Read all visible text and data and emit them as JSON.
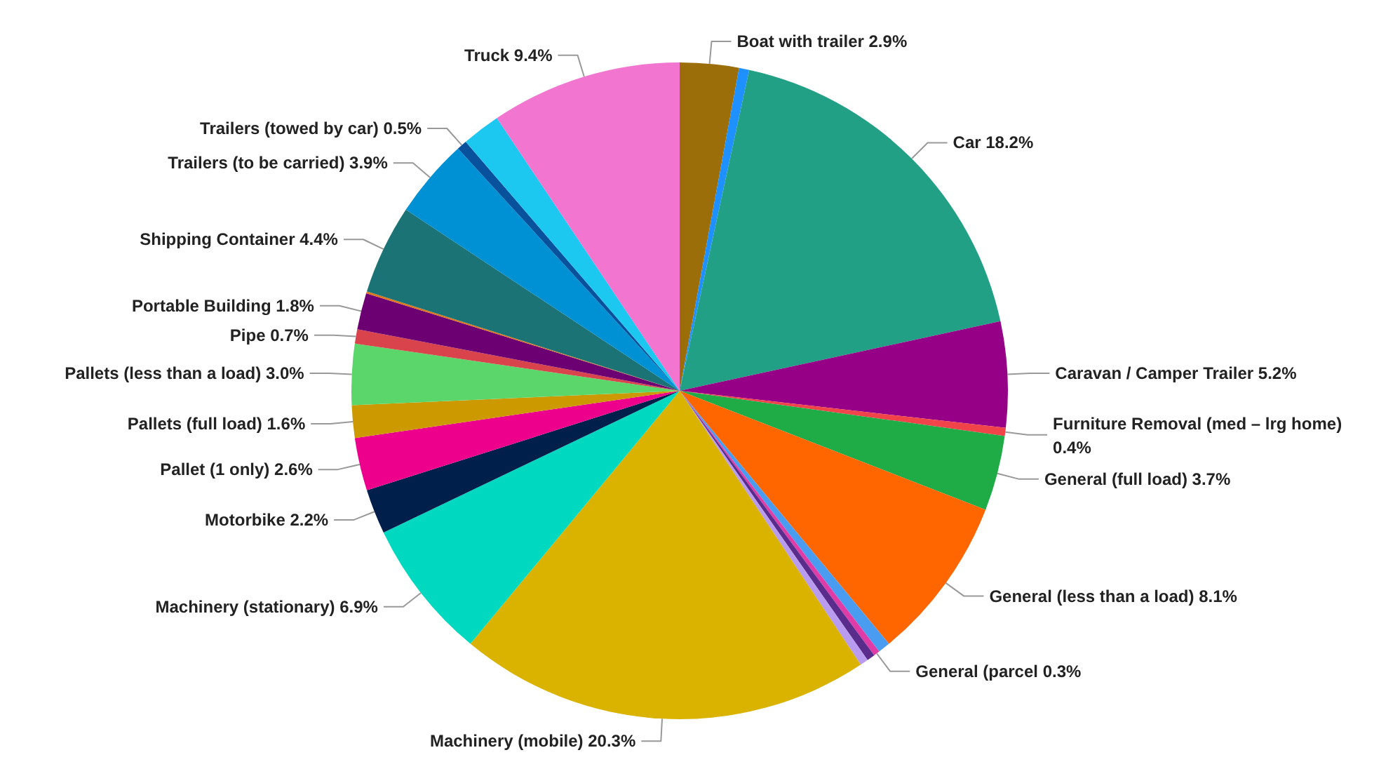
{
  "chart_data": {
    "type": "pie",
    "data_labels": true,
    "categories": [
      "Boat with trailer",
      null,
      "Car",
      "Caravan / Camper Trailer",
      "Furniture Removal (med – lrg home)",
      "General (full load)",
      "General (less than a load)",
      null,
      "General (parcel",
      null,
      null,
      "Machinery (mobile)",
      "Machinery (stationary)",
      "Motorbike",
      "Pallet (1 only)",
      "Pallets (full load)",
      "Pallets (less than a load)",
      "Pipe",
      "Portable Building",
      null,
      "Shipping Container",
      "Trailers (to be carried)",
      "Trailers (towed by car)",
      null,
      "Truck"
    ],
    "values": [
      2.9,
      0.5,
      18.2,
      5.2,
      0.4,
      3.7,
      8.1,
      0.6,
      0.3,
      0.4,
      0.4,
      20.3,
      6.9,
      2.2,
      2.6,
      1.6,
      3.0,
      0.7,
      1.8,
      0.1,
      4.4,
      3.9,
      0.5,
      1.9,
      9.4
    ],
    "value_labels": [
      "2.9%",
      null,
      "18.2%",
      "5.2%",
      "0.4%",
      "3.7%",
      "8.1%",
      null,
      "0.3%",
      null,
      null,
      "20.3%",
      "6.9%",
      "2.2%",
      "2.6%",
      "1.6%",
      "3.0%",
      "0.7%",
      "1.8%",
      null,
      "4.4%",
      "3.9%",
      "0.5%",
      null,
      "9.4%"
    ],
    "colors": [
      "#9b6e0a",
      "#1e90ff",
      "#21a085",
      "#960087",
      "#f0434a",
      "#1fab46",
      "#ff6600",
      "#4a9cf0",
      "#e03ca8",
      "#5a2d8c",
      "#b99cf0",
      "#d9b300",
      "#00d9bf",
      "#011f4b",
      "#ec008c",
      "#cc9a00",
      "#5ad66a",
      "#d9434c",
      "#6c0073",
      "#e0761a",
      "#1c7375",
      "#0091d5",
      "#08519c",
      "#1cc8f0",
      "#f276d0"
    ]
  }
}
